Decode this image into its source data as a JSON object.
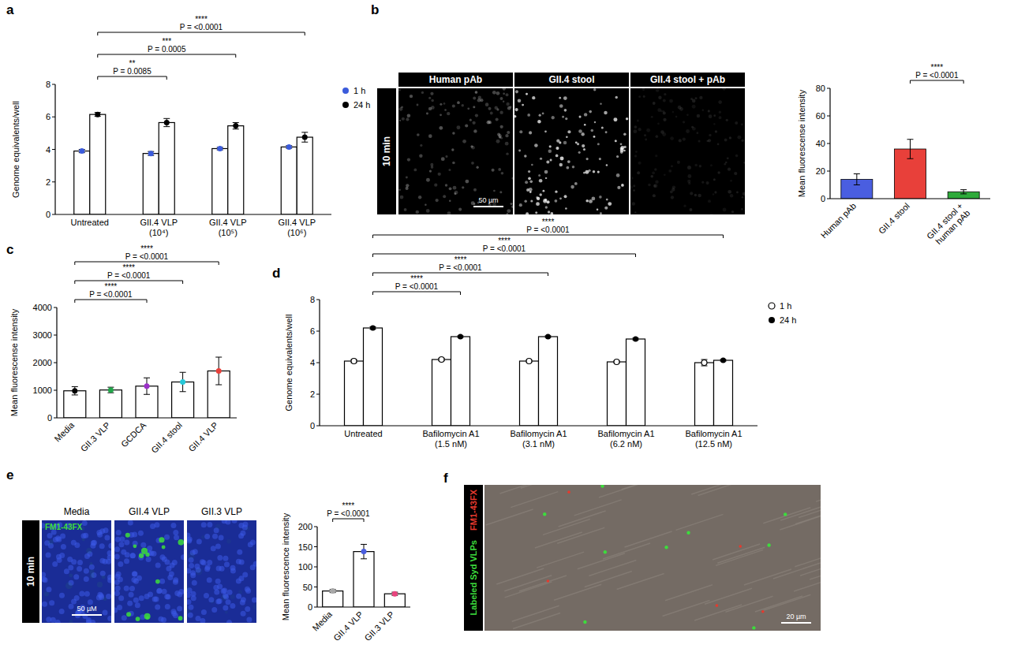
{
  "chart_data": [
    {
      "type": "bar",
      "title": "a",
      "y_label": "Genome equivalents/well",
      "categories": [
        "Untreated",
        "GII.4 VLP\n(10⁴)",
        "GII.4 VLP\n(10⁵)",
        "GII.4 VLP\n(10⁶)"
      ],
      "series": [
        {
          "name": "1 h",
          "color": "#3b5bdb",
          "marker": "circle",
          "values": [
            3.9,
            3.75,
            4.05,
            4.15
          ],
          "errors": [
            0.1,
            0.12,
            0.08,
            0.08
          ]
        },
        {
          "name": "24 h",
          "color": "#000000",
          "marker": "circle",
          "values": [
            6.15,
            5.65,
            5.45,
            4.75
          ],
          "errors": [
            0.12,
            0.25,
            0.2,
            0.3
          ]
        }
      ],
      "ylim": [
        0,
        8
      ],
      "yticks": [
        0,
        2,
        4,
        6,
        8
      ],
      "legend": "right",
      "annotations": [
        {
          "series": 1,
          "from": 0,
          "to": 1,
          "stars": "**",
          "label": "P = 0.0085"
        },
        {
          "series": 1,
          "from": 0,
          "to": 2,
          "stars": "***",
          "label": "P = 0.0005"
        },
        {
          "series": 1,
          "from": 0,
          "to": 3,
          "stars": "****",
          "label": "P = <0.0001"
        }
      ]
    },
    {
      "type": "bar",
      "y_label": "Mean fluorescense intensity",
      "categories": [
        "Human pAb",
        "GII.4 stool",
        "GII.4 stool +\nhuman pAb"
      ],
      "values": [
        14,
        36,
        5
      ],
      "errors": [
        4,
        7,
        1.5
      ],
      "colors": [
        "#4a5ee0",
        "#e8403a",
        "#2eaa3a"
      ],
      "ylim": [
        0,
        80
      ],
      "yticks": [
        0,
        20,
        40,
        60,
        80
      ],
      "annotations": [
        {
          "from": 1,
          "to": 2,
          "stars": "****",
          "label": "P = <0.0001"
        }
      ]
    },
    {
      "type": "bar",
      "title": "c",
      "y_label": "Mean fluorescense intensity",
      "categories": [
        "Media",
        "GII.3 VLP",
        "GCDCA",
        "GII.4 stool",
        "GII.4 VLP"
      ],
      "values": [
        980,
        1010,
        1150,
        1300,
        1700
      ],
      "errors": [
        150,
        100,
        300,
        350,
        500
      ],
      "colors": [
        "#000000",
        "#22a64a",
        "#9b30c8",
        "#25c8d8",
        "#e8403a"
      ],
      "marker": "circle",
      "ylim": [
        0,
        4000
      ],
      "yticks": [
        0,
        1000,
        2000,
        3000,
        4000
      ],
      "annotations": [
        {
          "from": 0,
          "to": 2,
          "stars": "****",
          "label": "P = <0.0001"
        },
        {
          "from": 0,
          "to": 3,
          "stars": "****",
          "label": "P = <0.0001"
        },
        {
          "from": 0,
          "to": 4,
          "stars": "****",
          "label": "P = <0.0001"
        }
      ]
    },
    {
      "type": "bar",
      "title": "d",
      "y_label": "Genome equivalents/well",
      "categories": [
        "Untreated",
        "Bafilomycin A1\n(1.5 nM)",
        "Bafilomycin A1\n(3.1 nM)",
        "Bafilomycin A1\n(6.2 nM)",
        "Bafilomycin A1\n(12.5 nM)"
      ],
      "series": [
        {
          "name": "1 h",
          "color": "#000000",
          "marker": "open-circle",
          "values": [
            4.1,
            4.2,
            4.1,
            4.05,
            4.0
          ],
          "errors": [
            0.1,
            0.08,
            0.06,
            0.06,
            0.2
          ]
        },
        {
          "name": "24 h",
          "color": "#000000",
          "marker": "circle",
          "values": [
            6.2,
            5.65,
            5.65,
            5.5,
            4.15
          ],
          "errors": [
            0.08,
            0.05,
            0.05,
            0.06,
            0.05
          ]
        }
      ],
      "ylim": [
        0,
        8
      ],
      "yticks": [
        0,
        2,
        4,
        6,
        8
      ],
      "legend": "right",
      "annotations": [
        {
          "series": 1,
          "from": 0,
          "to": 1,
          "stars": "****",
          "label": "P = <0.0001"
        },
        {
          "series": 1,
          "from": 0,
          "to": 2,
          "stars": "****",
          "label": "P = <0.0001"
        },
        {
          "series": 1,
          "from": 0,
          "to": 3,
          "stars": "****",
          "label": "P = <0.0001"
        },
        {
          "series": 1,
          "from": 0,
          "to": 4,
          "stars": "****",
          "label": "P = <0.0001"
        }
      ]
    },
    {
      "type": "bar",
      "y_label": "Mean fluorescence intensity",
      "categories": [
        "Media",
        "GII.4 VLP",
        "GII.3 VLP"
      ],
      "values": [
        40,
        138,
        33
      ],
      "errors": [
        4,
        18,
        4
      ],
      "colors": [
        "#a8a8a8",
        "#4a5ee0",
        "#e8447e"
      ],
      "marker": "circle",
      "ylim": [
        0,
        200
      ],
      "yticks": [
        0,
        50,
        100,
        150,
        200
      ],
      "annotations": [
        {
          "from": 0,
          "to": 1,
          "stars": "****",
          "label": "P = <0.0001"
        }
      ]
    }
  ],
  "images": [
    {
      "panel": "b",
      "side_label": "10 min",
      "headers": [
        "Human pAb",
        "GII.4 stool",
        "GII.4 stool + pAb"
      ],
      "scale_bar": "50 µm"
    },
    {
      "panel": "e",
      "side_label": "10 min",
      "headers": [
        "Media",
        "GII.4 VLP",
        "GII.3 VLP"
      ],
      "channels": [
        {
          "label": "FM1-43FX",
          "color": "#3ddc3d"
        }
      ],
      "scale_bar": "50 µM"
    },
    {
      "panel": "f",
      "channels": [
        {
          "label": "FM1-43FX",
          "color": "#e53a2e"
        },
        {
          "label": "Labeled Syd VLPs",
          "color": "#3ddc3d"
        }
      ],
      "scale_bar": "20 µm"
    }
  ]
}
